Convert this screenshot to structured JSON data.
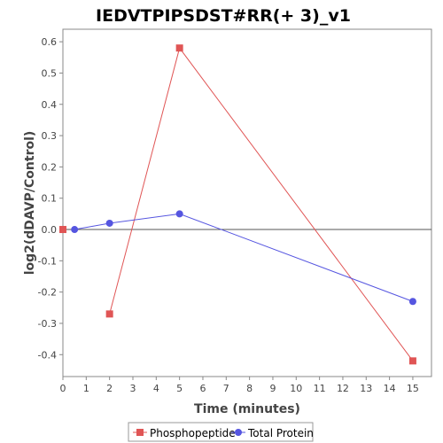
{
  "chart_data": {
    "type": "line",
    "title": "IEDVTPIPSDST#RR(+ 3)_v1",
    "xlabel": "Time (minutes)",
    "ylabel": "log2(dDAVP/Control)",
    "xlim": [
      0,
      15.8
    ],
    "ylim": [
      -0.47,
      0.64
    ],
    "x_ticks": [
      0,
      1,
      2,
      3,
      4,
      5,
      6,
      7,
      8,
      9,
      10,
      11,
      12,
      13,
      14,
      15
    ],
    "y_ticks": [
      0.6,
      0.5,
      0.4,
      0.3,
      0.2,
      0.1,
      0.0,
      -0.1,
      -0.2,
      -0.3,
      -0.4
    ],
    "y_tick_labels": [
      "0.6",
      "0.5",
      "0.4",
      "0.3",
      "0.2",
      "0.1",
      "0.0",
      "-0.1",
      "-0.2",
      "-0.3",
      "-0.4"
    ],
    "zero_line": true,
    "grid": false,
    "legend_position": "bottom",
    "series": [
      {
        "name": "Phosphopeptide",
        "color": "#e05555",
        "marker": "square",
        "points": [
          {
            "x": 0,
            "y": 0.0
          },
          {
            "x": 2,
            "y": -0.27
          },
          {
            "x": 5,
            "y": 0.58
          },
          {
            "x": 15,
            "y": -0.42
          }
        ],
        "line_from_index": 1
      },
      {
        "name": "Total Protein",
        "color": "#5555e0",
        "marker": "circle",
        "points": [
          {
            "x": 0.5,
            "y": 0.0
          },
          {
            "x": 2,
            "y": 0.02
          },
          {
            "x": 5,
            "y": 0.05
          },
          {
            "x": 15,
            "y": -0.23
          }
        ],
        "line_from_index": 0
      }
    ]
  }
}
